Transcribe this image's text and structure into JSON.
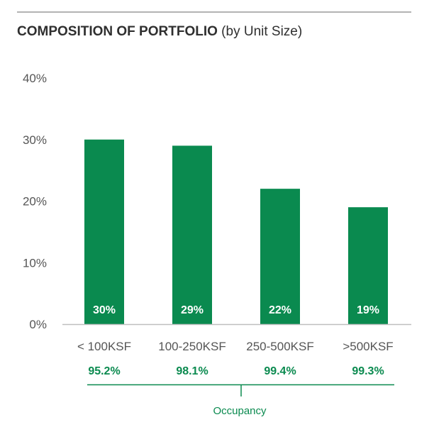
{
  "title": {
    "bold": "COMPOSITION OF PORTFOLIO",
    "rest": "(by Unit Size)"
  },
  "colors": {
    "bar": "#0a8a4f",
    "occupancy": "#0a8a4f",
    "axis": "#bfbfbf",
    "text": "#555555"
  },
  "chart_data": {
    "type": "bar",
    "title": "COMPOSITION OF PORTFOLIO (by Unit Size)",
    "categories": [
      "< 100KSF",
      "100-250KSF",
      "250-500KSF",
      ">500KSF"
    ],
    "values": [
      30,
      29,
      22,
      19
    ],
    "data_labels": [
      "30%",
      "29%",
      "22%",
      "19%"
    ],
    "y_ticks": [
      "0%",
      "10%",
      "20%",
      "30%",
      "40%"
    ],
    "ylim": [
      0,
      40
    ],
    "xlabel": "",
    "ylabel": "",
    "grid": false,
    "legend": "none"
  },
  "occupancy": {
    "label": "Occupancy",
    "values": [
      "95.2%",
      "98.1%",
      "99.4%",
      "99.3%"
    ]
  }
}
